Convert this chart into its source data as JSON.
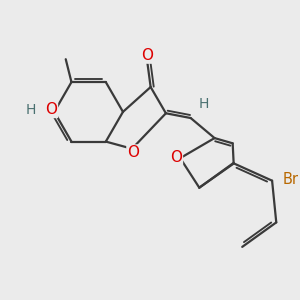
{
  "bg_color": "#ebebeb",
  "bond_color": "#3a3a3a",
  "bond_lw": 1.6,
  "dbo": 0.06,
  "atom_colors": {
    "O": "#dd0000",
    "H": "#4a7070",
    "Br": "#b86800",
    "C": "#3a3a3a"
  },
  "fs_main": 10.0,
  "fs_small": 9.0
}
